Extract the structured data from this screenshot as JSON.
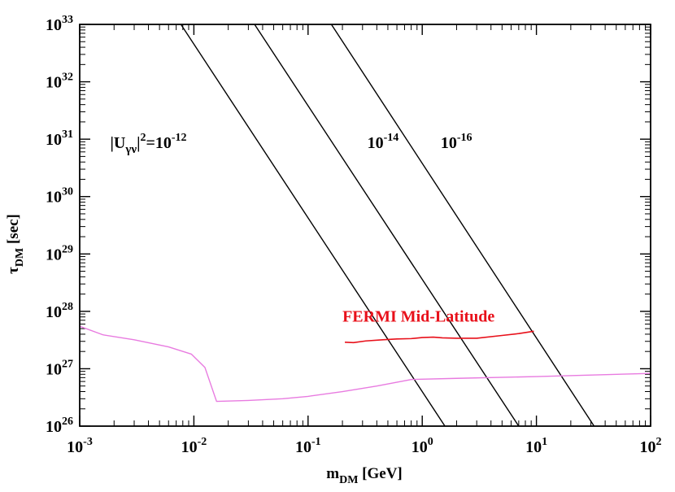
{
  "chart_data": {
    "type": "line",
    "xscale": "log",
    "yscale": "log",
    "xlim": [
      0.001,
      100
    ],
    "ylim": [
      1e+26,
      1e+33
    ],
    "grid": false,
    "xlabel": {
      "main": "m",
      "sub": "DM",
      "unit": " [GeV]"
    },
    "ylabel": {
      "main": "τ",
      "sub": "DM",
      "unit": " [sec]"
    },
    "xticks": [
      {
        "value": 0.001,
        "base": "10",
        "exp": "-3"
      },
      {
        "value": 0.01,
        "base": "10",
        "exp": "-2"
      },
      {
        "value": 0.1,
        "base": "10",
        "exp": "-1"
      },
      {
        "value": 1,
        "base": "10",
        "exp": "0"
      },
      {
        "value": 10,
        "base": "10",
        "exp": "1"
      },
      {
        "value": 100,
        "base": "10",
        "exp": "2"
      }
    ],
    "yticks": [
      {
        "value": 1e+26,
        "base": "10",
        "exp": "26"
      },
      {
        "value": 1e+27,
        "base": "10",
        "exp": "27"
      },
      {
        "value": 1e+28,
        "base": "10",
        "exp": "28"
      },
      {
        "value": 1e+29,
        "base": "10",
        "exp": "29"
      },
      {
        "value": 1e+30,
        "base": "10",
        "exp": "30"
      },
      {
        "value": 1e+31,
        "base": "10",
        "exp": "31"
      },
      {
        "value": 1e+32,
        "base": "10",
        "exp": "32"
      },
      {
        "value": 1e+33,
        "base": "10",
        "exp": "33"
      }
    ],
    "series": [
      {
        "color": "#000000",
        "x": [
          0.0077,
          1.58
        ],
        "y": [
          1e+33,
          1e+26
        ]
      },
      {
        "color": "#000000",
        "x": [
          0.034,
          7.0
        ],
        "y": [
          1e+33,
          1e+26
        ]
      },
      {
        "color": "#000000",
        "x": [
          0.16,
          32
        ],
        "y": [
          1e+33,
          1e+26
        ]
      },
      {
        "name": "FERMI Mid-Latitude",
        "color": "#e8101a",
        "x": [
          0.21,
          0.25,
          0.32,
          0.45,
          0.6,
          0.8,
          1.0,
          1.25,
          1.5,
          2.0,
          3.0,
          5.0,
          7.0,
          9.5
        ],
        "y": [
          2.9e+27,
          2.85e+27,
          3.05e+27,
          3.2e+27,
          3.3e+27,
          3.35e+27,
          3.5e+27,
          3.55e+27,
          3.45e+27,
          3.4e+27,
          3.4e+27,
          3.8e+27,
          4.1e+27,
          4.5e+27
        ]
      },
      {
        "color": "#e87be0",
        "x": [
          0.001,
          0.0016,
          0.003,
          0.006,
          0.0095,
          0.0125,
          0.0158,
          0.03,
          0.06,
          0.1,
          0.2,
          0.4,
          0.8,
          2,
          10,
          100
        ],
        "y": [
          5.5e+27,
          3.9e+27,
          3.2e+27,
          2.4e+27,
          1.8e+27,
          1.05e+27,
          2.7e+26,
          2.8e+26,
          3e+26,
          3.3e+26,
          4e+26,
          5e+26,
          6.5e+26,
          6.8e+26,
          7.3e+26,
          8.3e+26
        ]
      }
    ],
    "annotations": [
      {
        "id": "u12",
        "pre": "|U",
        "sub": "γν",
        "post": "|",
        "sup": "2",
        "mid": "=10",
        "sup2": "-12",
        "x": 0.00185,
        "y": 7e+30,
        "color": "#000000"
      },
      {
        "id": "u14",
        "pre": "10",
        "sup": "-14",
        "x": 0.33,
        "y": 7e+30,
        "color": "#000000"
      },
      {
        "id": "u16",
        "pre": "10",
        "sup": "-16",
        "x": 1.45,
        "y": 7e+30,
        "color": "#000000"
      },
      {
        "id": "fermi",
        "pre": "FERMI Mid-Latitude",
        "x": 0.2,
        "y": 6.6e+27,
        "color": "#e8101a"
      }
    ]
  }
}
